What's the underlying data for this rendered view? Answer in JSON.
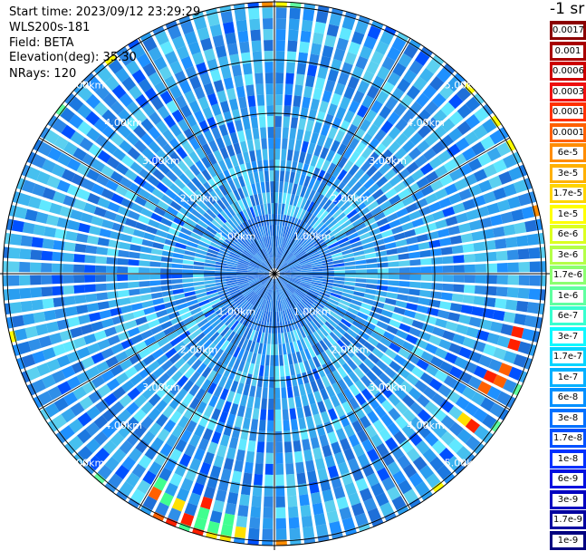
{
  "info": {
    "start_time": "Start time: 2023/09/12 23:29:29",
    "device": "WLS200s-181",
    "field": "Field: BETA",
    "elevation": "Elevation(deg): 35.30",
    "nrays": "NRays: 120"
  },
  "unit_label": "-1 sr",
  "range_rings": {
    "labels": [
      "1.00km",
      "2.00km",
      "3.00km",
      "4.00km",
      "5.00km"
    ]
  },
  "colorbar": {
    "entries": [
      {
        "label": "0.0017",
        "color": "#8b0000"
      },
      {
        "label": "0.001",
        "color": "#a80000"
      },
      {
        "label": "0.0006",
        "color": "#cc0000"
      },
      {
        "label": "0.0003",
        "color": "#ee1010"
      },
      {
        "label": "0.00017",
        "color": "#ff3000"
      },
      {
        "label": "0.0001",
        "color": "#ff6000"
      },
      {
        "label": "6e-5",
        "color": "#ff8c00"
      },
      {
        "label": "3e-5",
        "color": "#ffb000"
      },
      {
        "label": "1.7e-5",
        "color": "#ffd400"
      },
      {
        "label": "1e-5",
        "color": "#ffff00"
      },
      {
        "label": "6e-6",
        "color": "#dcff20"
      },
      {
        "label": "3e-6",
        "color": "#b4ff48"
      },
      {
        "label": "1.7e-6",
        "color": "#8cff70"
      },
      {
        "label": "1e-6",
        "color": "#60ffa0"
      },
      {
        "label": "6e-7",
        "color": "#38ffd0"
      },
      {
        "label": "3e-7",
        "color": "#10f8ff"
      },
      {
        "label": "1.7e-7",
        "color": "#00d4ff"
      },
      {
        "label": "1e-7",
        "color": "#00b0ff"
      },
      {
        "label": "6e-8",
        "color": "#0090ff"
      },
      {
        "label": "3e-8",
        "color": "#0070ff"
      },
      {
        "label": "1.7e-8",
        "color": "#0050ff"
      },
      {
        "label": "1e-8",
        "color": "#0030ff"
      },
      {
        "label": "6e-9",
        "color": "#0010e0"
      },
      {
        "label": "3e-9",
        "color": "#0000c0"
      },
      {
        "label": "1.7e-9",
        "color": "#0000a0"
      },
      {
        "label": "1e-9",
        "color": "#000080"
      }
    ]
  }
}
